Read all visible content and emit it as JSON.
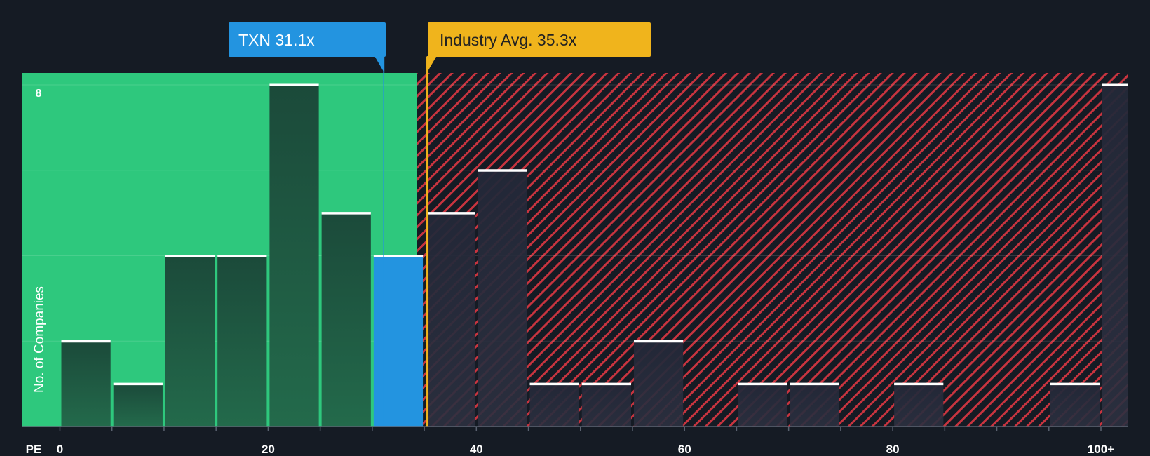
{
  "chart_data": {
    "type": "bar",
    "title": "",
    "xlabel": "PE",
    "ylabel": "No. of Companies",
    "y_max_label": "8",
    "ylim": [
      0,
      8
    ],
    "xlim": [
      0,
      102
    ],
    "x_ticks": [
      {
        "value": 0,
        "label": "0"
      },
      {
        "value": 20,
        "label": "20"
      },
      {
        "value": 40,
        "label": "40"
      },
      {
        "value": 60,
        "label": "60"
      },
      {
        "value": 80,
        "label": "80"
      },
      {
        "value": 100,
        "label": "100+"
      }
    ],
    "bins": [
      {
        "from": 0,
        "to": 5,
        "count": 2
      },
      {
        "from": 5,
        "to": 10,
        "count": 1
      },
      {
        "from": 10,
        "to": 15,
        "count": 4
      },
      {
        "from": 15,
        "to": 20,
        "count": 4
      },
      {
        "from": 20,
        "to": 25,
        "count": 8
      },
      {
        "from": 25,
        "to": 30,
        "count": 5
      },
      {
        "from": 30,
        "to": 35,
        "count": 4,
        "highlight": true
      },
      {
        "from": 35,
        "to": 40,
        "count": 5
      },
      {
        "from": 40,
        "to": 45,
        "count": 6
      },
      {
        "from": 45,
        "to": 50,
        "count": 1
      },
      {
        "from": 50,
        "to": 55,
        "count": 1
      },
      {
        "from": 55,
        "to": 60,
        "count": 2
      },
      {
        "from": 60,
        "to": 65,
        "count": 0
      },
      {
        "from": 65,
        "to": 70,
        "count": 1
      },
      {
        "from": 70,
        "to": 75,
        "count": 1
      },
      {
        "from": 75,
        "to": 80,
        "count": 0
      },
      {
        "from": 80,
        "to": 85,
        "count": 1
      },
      {
        "from": 85,
        "to": 90,
        "count": 0
      },
      {
        "from": 90,
        "to": 95,
        "count": 0
      },
      {
        "from": 95,
        "to": 100,
        "count": 1
      },
      {
        "from": 100,
        "to": 102,
        "count": 8
      }
    ],
    "company": {
      "label": "TXN 31.1x",
      "value": 31.1
    },
    "industry": {
      "label": "Industry Avg. 35.3x",
      "value": 35.3
    },
    "fair_zone_end": 34.3
  },
  "colors": {
    "background": "#151b24",
    "green_zone": "#2ec87d",
    "red_zone": "#c8343f",
    "bar_in_green": "#1f5a44",
    "bar_in_red": "#2a2e3c",
    "highlight_bar": "#2394e0",
    "company_marker": "#2394e0",
    "industry_marker": "#f0b41c",
    "bar_cap": "#ffffff",
    "axis_text": "#ffffff"
  }
}
